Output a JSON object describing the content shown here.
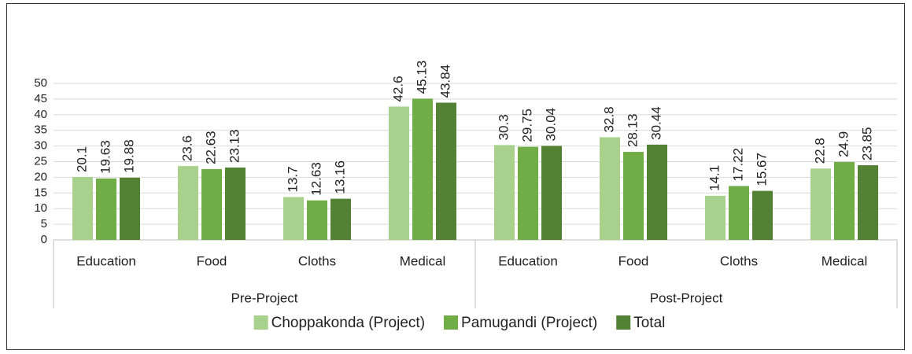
{
  "chart_data": {
    "type": "bar",
    "groups": [
      {
        "name": "Pre-Project",
        "categories": [
          "Education",
          "Food",
          "Cloths",
          "Medical"
        ]
      },
      {
        "name": "Post-Project",
        "categories": [
          "Education",
          "Food",
          "Cloths",
          "Medical"
        ]
      }
    ],
    "series": [
      {
        "name": "Choppakonda (Project)",
        "color": "#a9d18e",
        "values": [
          20.1,
          23.6,
          13.7,
          42.6,
          30.3,
          32.8,
          14.1,
          22.8
        ]
      },
      {
        "name": "Pamugandi (Project)",
        "color": "#70ad47",
        "values": [
          19.63,
          22.63,
          12.63,
          45.13,
          29.75,
          28.13,
          17.22,
          24.9
        ]
      },
      {
        "name": "Total",
        "color": "#548235",
        "values": [
          19.88,
          23.13,
          13.16,
          43.84,
          30.04,
          30.44,
          15.67,
          23.85
        ]
      }
    ],
    "ylim": [
      0,
      50
    ],
    "yticks": [
      0,
      5,
      10,
      15,
      20,
      25,
      30,
      35,
      40,
      45,
      50
    ],
    "grid": true,
    "legend": "bottom"
  }
}
